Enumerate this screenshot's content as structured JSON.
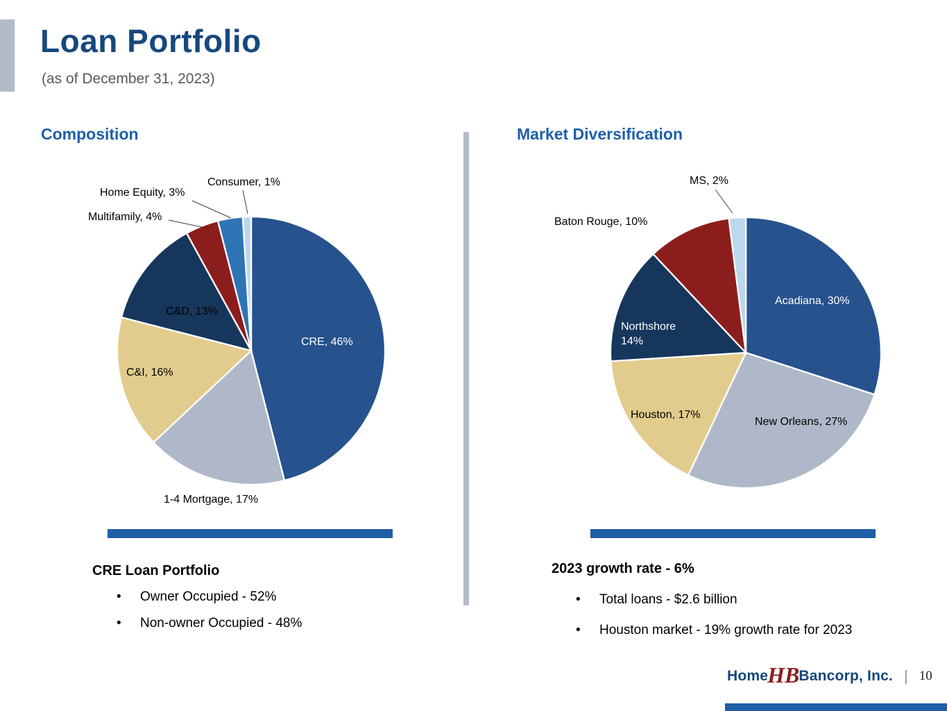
{
  "page": {
    "title": "Loan Portfolio",
    "subtitle": "(as of December 31, 2023)",
    "page_number": "10",
    "footer_separator": "|"
  },
  "logo": {
    "part1": "Home",
    "monogram": "HB",
    "part2": "Bancorp, Inc."
  },
  "theme": {
    "title_color": "#17487E",
    "heading_color": "#1E5FA9",
    "accent_bar_color": "#1F5FA8",
    "divider_color": "#B3BBC9",
    "maroon": "#8B1E1E",
    "footer_navy": "#14477D"
  },
  "left_section": {
    "heading": "Composition",
    "callout_title": "CRE Loan Portfolio",
    "bullets": [
      "Owner Occupied - 52%",
      "Non-owner Occupied - 48%"
    ]
  },
  "right_section": {
    "heading": "Market Diversification",
    "callout_title": "2023 growth rate - 6%",
    "bullets": [
      "Total loans - $2.6 billion",
      "Houston market - 19% growth rate for 2023"
    ]
  },
  "chart_data": [
    {
      "type": "pie",
      "title": "Composition",
      "categories": [
        "CRE",
        "1-4 Mortgage",
        "C&I",
        "C&D",
        "Multifamily",
        "Home Equity",
        "Consumer"
      ],
      "values": [
        46,
        17,
        16,
        13,
        4,
        3,
        1
      ],
      "labels": [
        "CRE, 46%",
        "1-4 Mortgage, 17%",
        "C&I, 16%",
        "C&D, 13%",
        "Multifamily, 4%",
        "Home Equity, 3%",
        "Consumer, 1%"
      ],
      "colors": [
        "#26528E",
        "#AFB8C8",
        "#E2CC8D",
        "#16365C",
        "#8C1D1D",
        "#2E75B6",
        "#BDD7EE"
      ],
      "start_angle_deg": 0,
      "direction": "clockwise",
      "legend": "none"
    },
    {
      "type": "pie",
      "title": "Market Diversification",
      "categories": [
        "Acadiana",
        "New Orleans",
        "Houston",
        "Northshore",
        "Baton Rouge",
        "MS"
      ],
      "values": [
        30,
        27,
        17,
        14,
        10,
        2
      ],
      "labels": [
        "Acadiana, 30%",
        "New Orleans, 27%",
        "Houston, 17%",
        "Northshore 14%",
        "Baton Rouge, 10%",
        "MS, 2%"
      ],
      "colors": [
        "#26528E",
        "#AFB8C8",
        "#E2CC8D",
        "#16365C",
        "#8C1D1D",
        "#BDD7EE"
      ],
      "start_angle_deg": 0,
      "direction": "clockwise",
      "legend": "none"
    }
  ]
}
